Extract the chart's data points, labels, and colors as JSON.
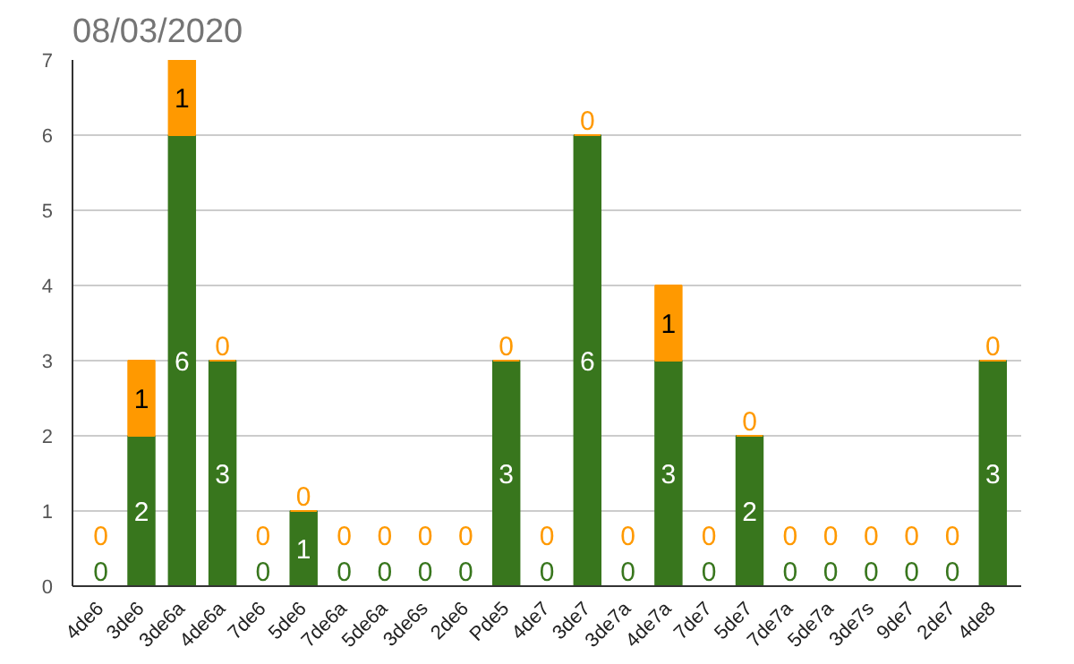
{
  "chart_data": {
    "type": "bar",
    "title": "08/03/2020",
    "stacked": true,
    "data_labels": true,
    "grid": "y",
    "categories": [
      "4de6",
      "3de6",
      "3de6a",
      "4de6a",
      "7de6",
      "5de6",
      "7de6a",
      "5de6a",
      "3de6s",
      "2de6",
      "Pde5",
      "4de7",
      "3de7",
      "3de7a",
      "4de7a",
      "7de7",
      "5de7",
      "7de7a",
      "5de7a",
      "3de7s",
      "9de7",
      "2de7",
      "4de8"
    ],
    "series": [
      {
        "color": "#38761d",
        "values": [
          0,
          2,
          6,
          3,
          0,
          1,
          0,
          0,
          0,
          0,
          3,
          0,
          6,
          0,
          3,
          0,
          2,
          0,
          0,
          0,
          0,
          0,
          3
        ]
      },
      {
        "color": "#ff9900",
        "values": [
          0,
          1,
          1,
          0,
          0,
          0,
          0,
          0,
          0,
          0,
          0,
          0,
          0,
          0,
          1,
          0,
          0,
          0,
          0,
          0,
          0,
          0,
          0
        ]
      }
    ],
    "ylim": [
      0,
      7
    ],
    "yticks": [
      0,
      1,
      2,
      3,
      4,
      5,
      6,
      7
    ]
  }
}
